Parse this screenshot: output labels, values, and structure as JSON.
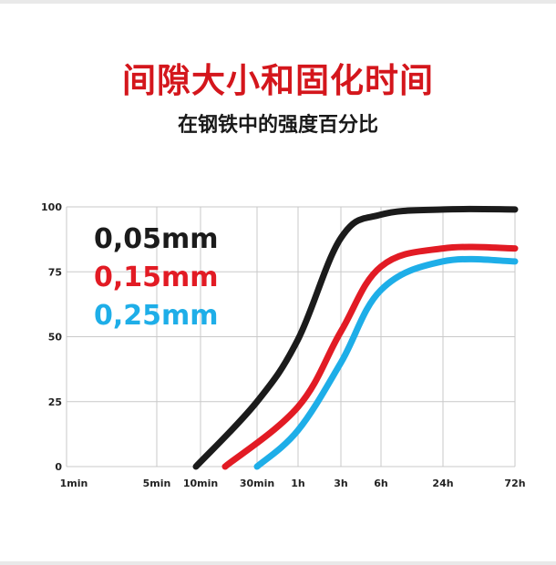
{
  "header": {
    "title": "间隙大小和固化时间",
    "subtitle": "在钢铁中的强度百分比"
  },
  "colors": {
    "title": "#d4161c",
    "series_black": "#1b1b1b",
    "series_red": "#e21b24",
    "series_blue": "#1eaee8",
    "grid": "#c9c9c9"
  },
  "chart_data": {
    "type": "line",
    "x_categories": [
      "1min",
      "5min",
      "10min",
      "30min",
      "1h",
      "3h",
      "6h",
      "24h",
      "72h"
    ],
    "y_ticks": [
      0,
      25,
      50,
      75,
      100
    ],
    "ylim": [
      0,
      100
    ],
    "grid": true,
    "legend_position": "top-left",
    "series": [
      {
        "name": "0,05mm",
        "color": "#1b1b1b",
        "points": [
          {
            "x": "10min",
            "y": 0
          },
          {
            "x": "30min",
            "y": 25
          },
          {
            "x": "1h",
            "y": 49
          },
          {
            "x": "3h",
            "y": 88
          },
          {
            "x": "6h",
            "y": 97
          },
          {
            "x": "24h",
            "y": 99
          },
          {
            "x": "72h",
            "y": 99
          }
        ]
      },
      {
        "name": "0,15mm",
        "color": "#e21b24",
        "points": [
          {
            "x": "30min",
            "y": 0
          },
          {
            "x": "1h",
            "y": 23
          },
          {
            "x": "3h",
            "y": 52
          },
          {
            "x": "6h",
            "y": 77
          },
          {
            "x": "24h",
            "y": 84
          },
          {
            "x": "72h",
            "y": 84
          }
        ]
      },
      {
        "name": "0,25mm",
        "color": "#1eaee8",
        "points": [
          {
            "x": "30min",
            "y": 0
          },
          {
            "x": "1h",
            "y": 14
          },
          {
            "x": "3h",
            "y": 40
          },
          {
            "x": "6h",
            "y": 68
          },
          {
            "x": "24h",
            "y": 79
          },
          {
            "x": "72h",
            "y": 79
          }
        ]
      }
    ]
  }
}
